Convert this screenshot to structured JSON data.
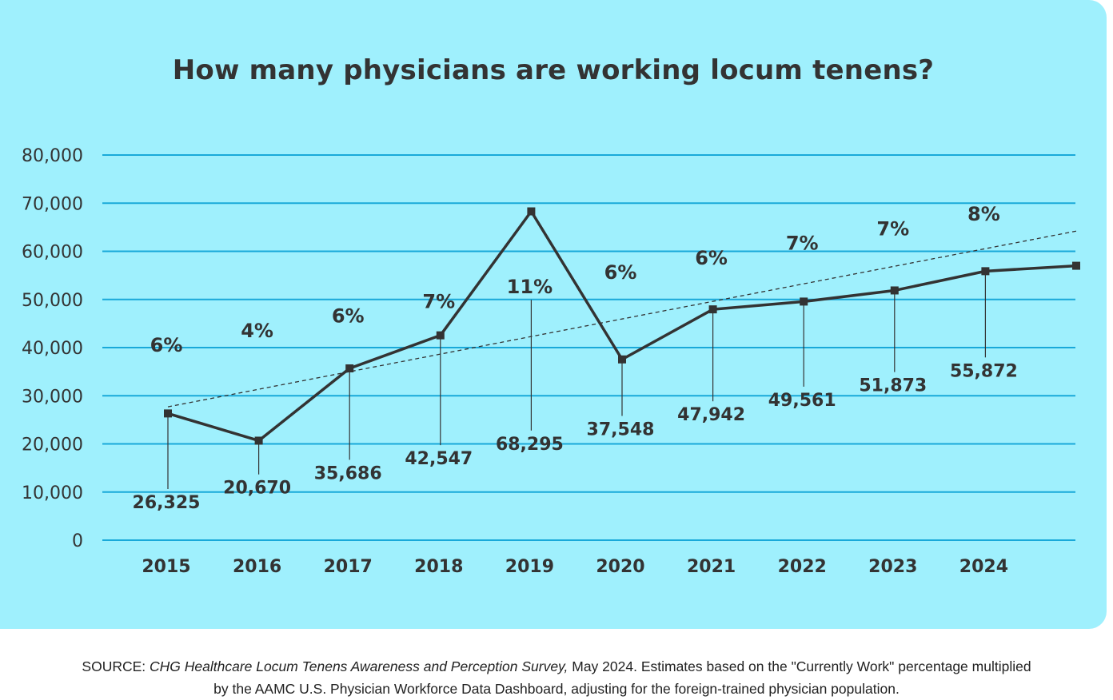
{
  "chart_data": {
    "type": "line",
    "title": "How many physicians are working locum tenens?",
    "categories": [
      "2015",
      "2016",
      "2017",
      "2018",
      "2019",
      "2020",
      "2021",
      "2022",
      "2023",
      "2024"
    ],
    "values": [
      26325,
      20670,
      35686,
      42547,
      68295,
      37548,
      47942,
      49561,
      51873,
      55872
    ],
    "value_labels": [
      "26,325",
      "20,670",
      "35,686",
      "42,547",
      "68,295",
      "37,548",
      "47,942",
      "49,561",
      "51,873",
      "55,872"
    ],
    "percent_labels": [
      "6%",
      "4%",
      "6%",
      "7%",
      "11%",
      "6%",
      "6%",
      "7%",
      "7%",
      "8%"
    ],
    "extra_unlabeled_point": 57000,
    "trendline": {
      "style": "dashed",
      "start": 27700,
      "end": 64200
    },
    "ylim": [
      0,
      80000
    ],
    "yticks": [
      "0",
      "10,000",
      "20,000",
      "30,000",
      "40,000",
      "50,000",
      "60,000",
      "70,000",
      "80,000"
    ],
    "ytick_values": [
      0,
      10000,
      20000,
      30000,
      40000,
      50000,
      60000,
      70000,
      80000
    ],
    "grid": true,
    "legend": "none",
    "xlabel": "",
    "ylabel": ""
  },
  "colors": {
    "background": "#9ff0fd",
    "grid": "#19a9d9",
    "line": "#333333",
    "text": "#333333"
  },
  "source": {
    "prefix": "SOURCE: ",
    "italic": "CHG Healthcare Locum Tenens Awareness and Perception Survey,",
    "rest": " May 2024. Estimates based on the \"Currently Work\" percentage multiplied",
    "line2": "by the AAMC U.S. Physician Workforce Data Dashboard, adjusting for the foreign-trained physician population."
  }
}
